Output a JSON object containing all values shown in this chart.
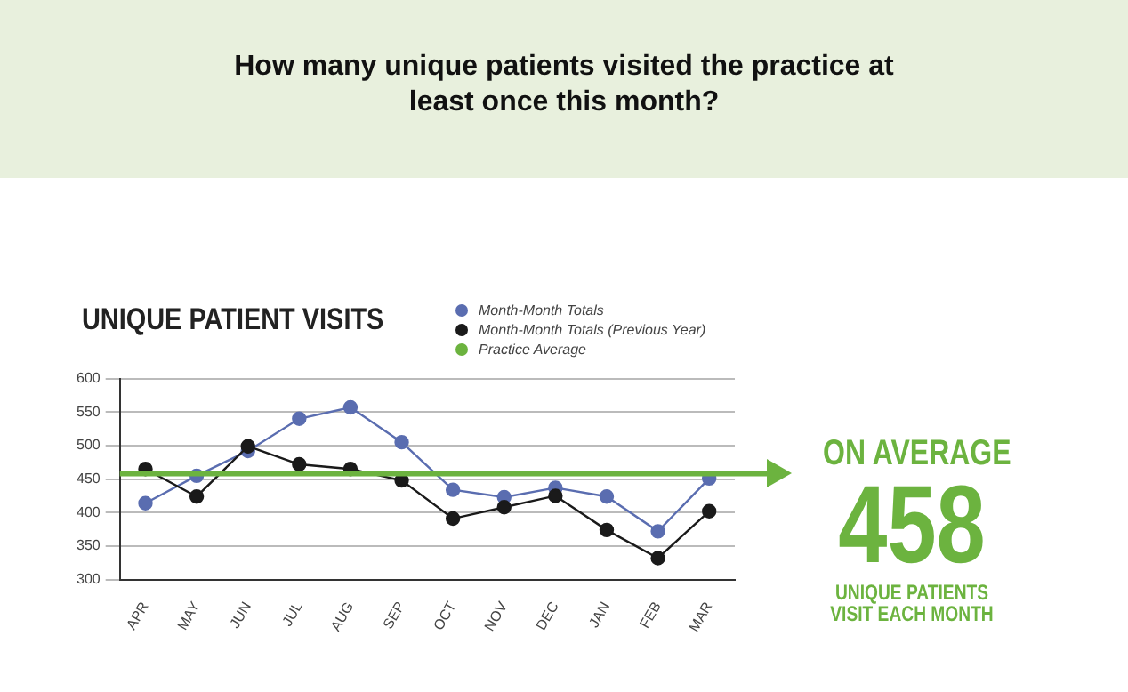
{
  "chart_data": {
    "type": "line",
    "title": "How many unique patients visited the practice at least once this month?",
    "subtitle": "UNIQUE PATIENT VISITS",
    "categories": [
      "APR",
      "MAY",
      "JUN",
      "JUL",
      "AUG",
      "SEP",
      "OCT",
      "NOV",
      "DEC",
      "JAN",
      "FEB",
      "MAR"
    ],
    "series": [
      {
        "name": "Month-Month Totals",
        "color": "#5a6db0",
        "values": [
          414,
          455,
          492,
          540,
          557,
          505,
          434,
          423,
          437,
          424,
          372,
          451
        ]
      },
      {
        "name": "Month-Month Totals (Previous Year)",
        "color": "#1a1a1a",
        "values": [
          465,
          424,
          499,
          472,
          465,
          448,
          391,
          408,
          425,
          374,
          332,
          402
        ]
      }
    ],
    "ref_lines": [
      {
        "axis": "y",
        "value": 458,
        "label": "Practice Average",
        "color": "#6cb33f"
      }
    ],
    "annotations": [
      "ON AVERAGE",
      "458",
      "UNIQUE PATIENTS\nVISIT EACH MONTH"
    ],
    "ylim": [
      300,
      600
    ],
    "yticks": [
      300,
      350,
      400,
      450,
      500,
      550,
      600
    ],
    "grid": "y",
    "legend": "top",
    "marker": "circle",
    "line_style": "solid"
  }
}
